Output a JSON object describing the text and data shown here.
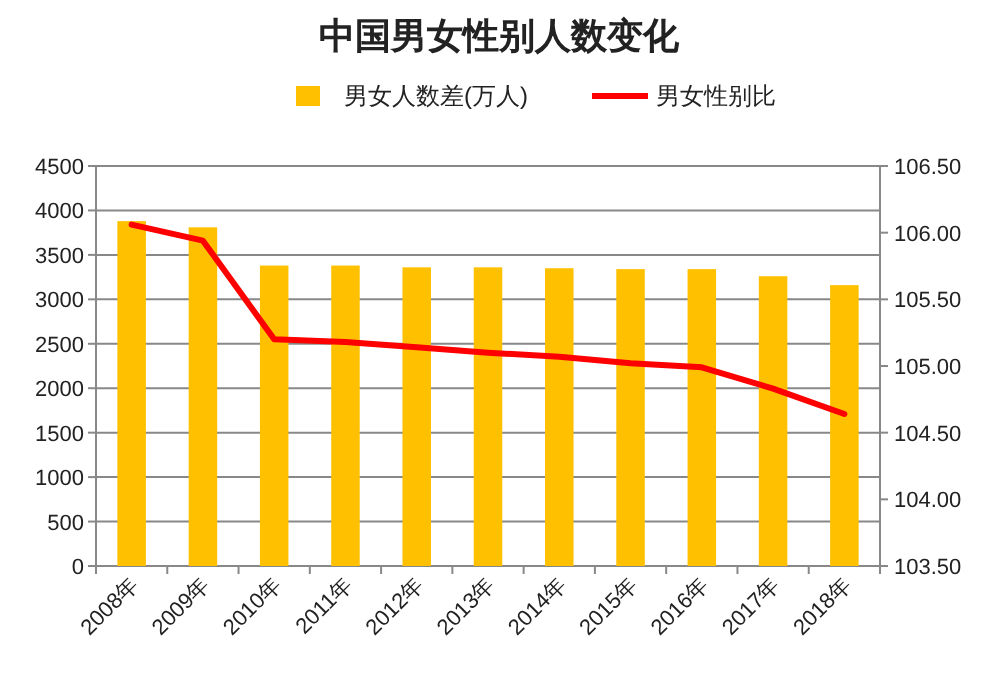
{
  "chart_data": {
    "type": "bar",
    "title": "中国男女性别人数变化",
    "categories": [
      "2008年",
      "2009年",
      "2010年",
      "2011年",
      "2012年",
      "2013年",
      "2014年",
      "2015年",
      "2016年",
      "2017年",
      "2018年"
    ],
    "series": [
      {
        "name": "男女人数差(万人)",
        "color": "#ffc000",
        "values": [
          3880,
          3810,
          3380,
          3380,
          3360,
          3360,
          3350,
          3340,
          3340,
          3260,
          3160
        ]
      },
      {
        "name": "男女性别比",
        "type": "line",
        "axis": "y2",
        "color": "#ff0000",
        "values": [
          106.06,
          105.94,
          105.2,
          105.18,
          105.14,
          105.1,
          105.07,
          105.02,
          104.99,
          104.83,
          104.64
        ]
      }
    ],
    "ylim": [
      0,
      4500
    ],
    "yticks": [
      0,
      500,
      1000,
      1500,
      2000,
      2500,
      3000,
      3500,
      4000,
      4500
    ],
    "y2lim": [
      103.5,
      106.5
    ],
    "y2ticks": [
      {
        "value": 103.5,
        "label": "103.50"
      },
      {
        "value": 104,
        "label": "104.00"
      },
      {
        "value": 104.5,
        "label": "104.50"
      },
      {
        "value": 105,
        "label": "105.00"
      },
      {
        "value": 105.5,
        "label": "105.50"
      },
      {
        "value": 106,
        "label": "106.00"
      },
      {
        "value": 106.5,
        "label": "106.50"
      }
    ],
    "grid": "y",
    "legend": "top",
    "marker": "none",
    "line_style": "solid"
  }
}
